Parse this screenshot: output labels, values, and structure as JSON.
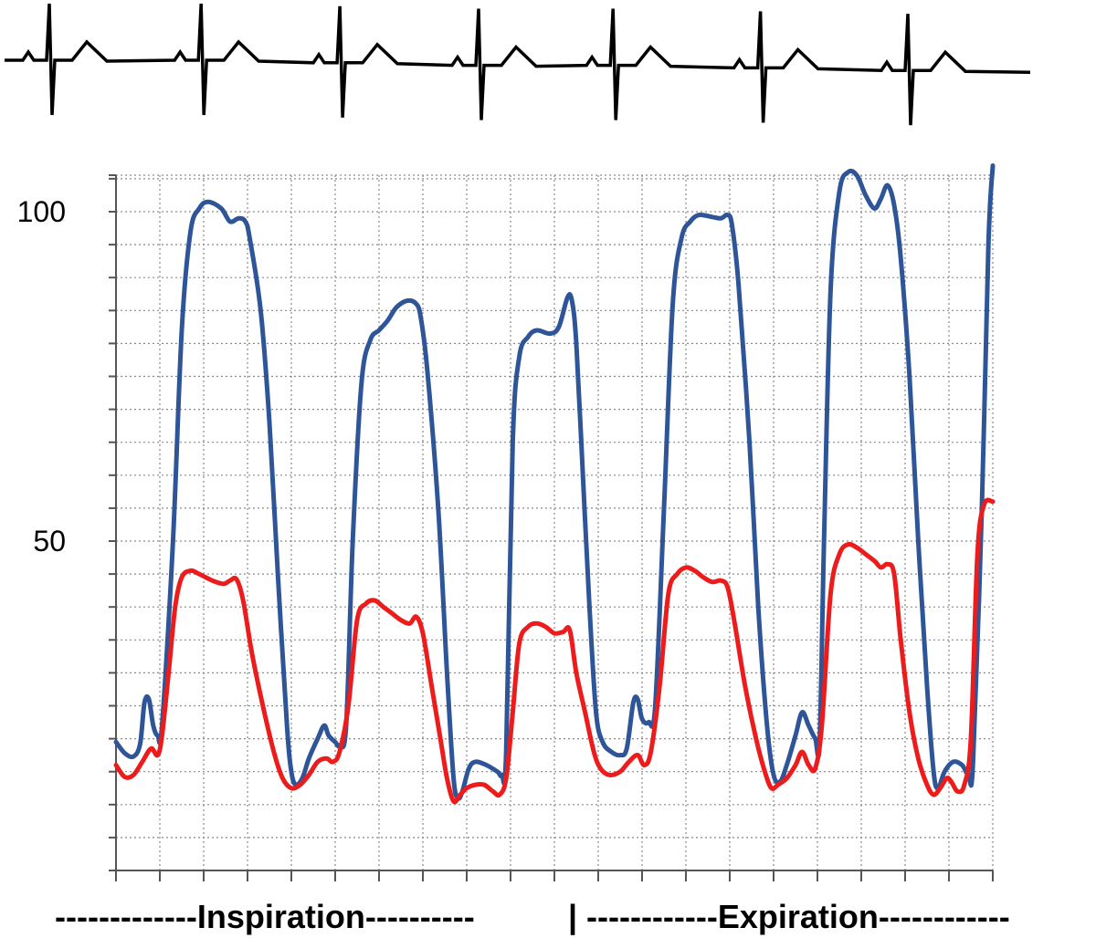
{
  "chart_data": {
    "type": "line",
    "title": "",
    "xlabel": "",
    "ylabel": "",
    "ylim": [
      0,
      110
    ],
    "y_ticks": [
      0,
      5,
      10,
      15,
      20,
      25,
      30,
      35,
      40,
      45,
      50,
      55,
      60,
      65,
      70,
      75,
      80,
      85,
      90,
      95,
      100,
      105
    ],
    "y_tick_labels": [
      {
        "value": 100,
        "label": "100"
      },
      {
        "value": 50,
        "label": "50"
      }
    ],
    "x_range": [
      0,
      20
    ],
    "grid": "dotted",
    "legend": "none",
    "ecg_trace": {
      "description_shown": "ECG trace above plot",
      "beats": [
        {
          "r_x": 0.0,
          "baseline": 0.0
        },
        {
          "r_x": 3.5,
          "baseline": 0.0
        },
        {
          "r_x": 6.7,
          "baseline": 0.2
        },
        {
          "r_x": 9.9,
          "baseline": 0.4
        },
        {
          "r_x": 13.0,
          "baseline": 0.4
        },
        {
          "r_x": 16.4,
          "baseline": 0.6
        },
        {
          "r_x": 19.8,
          "baseline": 0.8
        }
      ],
      "color": "#000000"
    },
    "series": [
      {
        "color": "#2e5597",
        "points": [
          [
            0.0,
            19.5
          ],
          [
            0.2,
            17.8
          ],
          [
            0.4,
            17.3
          ],
          [
            0.55,
            19.2
          ],
          [
            0.65,
            25.5
          ],
          [
            0.75,
            26.0
          ],
          [
            0.85,
            22.0
          ],
          [
            0.95,
            20.5
          ],
          [
            1.05,
            22.0
          ],
          [
            1.3,
            50.0
          ],
          [
            1.5,
            82.0
          ],
          [
            1.7,
            97.0
          ],
          [
            1.9,
            100.5
          ],
          [
            2.1,
            101.5
          ],
          [
            2.4,
            100.5
          ],
          [
            2.6,
            98.5
          ],
          [
            2.8,
            99.0
          ],
          [
            2.95,
            98.5
          ],
          [
            3.05,
            96.0
          ],
          [
            3.3,
            85.0
          ],
          [
            3.5,
            68.0
          ],
          [
            3.7,
            44.0
          ],
          [
            3.9,
            22.0
          ],
          [
            4.0,
            15.0
          ],
          [
            4.1,
            13.0
          ],
          [
            4.25,
            14.0
          ],
          [
            4.4,
            17.0
          ],
          [
            4.6,
            20.0
          ],
          [
            4.75,
            22.0
          ],
          [
            4.85,
            20.5
          ],
          [
            5.0,
            19.5
          ],
          [
            5.1,
            19.0
          ],
          [
            5.25,
            22.0
          ],
          [
            5.4,
            50.0
          ],
          [
            5.6,
            74.0
          ],
          [
            5.8,
            80.5
          ],
          [
            6.0,
            82.0
          ],
          [
            6.2,
            83.5
          ],
          [
            6.4,
            85.5
          ],
          [
            6.65,
            86.5
          ],
          [
            6.85,
            86.0
          ],
          [
            6.95,
            84.0
          ],
          [
            7.1,
            76.0
          ],
          [
            7.35,
            55.0
          ],
          [
            7.55,
            30.0
          ],
          [
            7.7,
            14.0
          ],
          [
            7.8,
            11.0
          ],
          [
            7.9,
            12.0
          ],
          [
            8.05,
            15.5
          ],
          [
            8.2,
            16.5
          ],
          [
            8.45,
            16.0
          ],
          [
            8.7,
            15.0
          ],
          [
            8.8,
            14.5
          ],
          [
            8.9,
            18.0
          ],
          [
            9.05,
            65.0
          ],
          [
            9.2,
            78.0
          ],
          [
            9.4,
            81.0
          ],
          [
            9.6,
            82.0
          ],
          [
            9.9,
            81.5
          ],
          [
            10.1,
            82.5
          ],
          [
            10.3,
            87.0
          ],
          [
            10.4,
            86.5
          ],
          [
            10.5,
            80.0
          ],
          [
            10.65,
            60.0
          ],
          [
            10.8,
            40.0
          ],
          [
            10.95,
            24.0
          ],
          [
            11.1,
            19.5
          ],
          [
            11.3,
            18.0
          ],
          [
            11.5,
            17.5
          ],
          [
            11.65,
            18.5
          ],
          [
            11.8,
            25.5
          ],
          [
            11.9,
            26.0
          ],
          [
            12.0,
            23.0
          ],
          [
            12.15,
            22.5
          ],
          [
            12.3,
            25.0
          ],
          [
            12.5,
            55.0
          ],
          [
            12.7,
            86.0
          ],
          [
            12.9,
            96.0
          ],
          [
            13.1,
            98.5
          ],
          [
            13.3,
            99.5
          ],
          [
            13.6,
            99.2
          ],
          [
            13.8,
            99.0
          ],
          [
            13.95,
            99.5
          ],
          [
            14.05,
            98.0
          ],
          [
            14.2,
            89.0
          ],
          [
            14.45,
            65.0
          ],
          [
            14.65,
            40.0
          ],
          [
            14.85,
            22.0
          ],
          [
            15.0,
            14.5
          ],
          [
            15.15,
            13.5
          ],
          [
            15.3,
            16.0
          ],
          [
            15.5,
            20.5
          ],
          [
            15.65,
            24.0
          ],
          [
            15.8,
            22.0
          ],
          [
            15.95,
            20.0
          ],
          [
            16.05,
            19.5
          ],
          [
            16.15,
            50.0
          ],
          [
            16.3,
            88.0
          ],
          [
            16.5,
            103.0
          ],
          [
            16.7,
            106.0
          ],
          [
            16.9,
            105.5
          ],
          [
            17.1,
            102.5
          ],
          [
            17.3,
            100.5
          ],
          [
            17.45,
            102.0
          ],
          [
            17.6,
            104.0
          ],
          [
            17.75,
            101.0
          ],
          [
            17.9,
            93.0
          ],
          [
            18.1,
            75.0
          ],
          [
            18.3,
            50.0
          ],
          [
            18.5,
            28.0
          ],
          [
            18.65,
            15.0
          ],
          [
            18.75,
            12.5
          ],
          [
            18.9,
            15.0
          ],
          [
            19.1,
            16.5
          ],
          [
            19.3,
            16.0
          ],
          [
            19.45,
            14.5
          ],
          [
            19.55,
            16.5
          ],
          [
            19.75,
            55.0
          ],
          [
            19.9,
            95.0
          ],
          [
            20.0,
            107.0
          ]
        ]
      },
      {
        "color": "#ed1c1c",
        "points": [
          [
            0.0,
            16.0
          ],
          [
            0.2,
            14.2
          ],
          [
            0.4,
            14.5
          ],
          [
            0.6,
            16.5
          ],
          [
            0.8,
            18.5
          ],
          [
            0.95,
            17.5
          ],
          [
            1.05,
            20.5
          ],
          [
            1.2,
            30.0
          ],
          [
            1.35,
            40.0
          ],
          [
            1.5,
            44.5
          ],
          [
            1.7,
            45.5
          ],
          [
            1.9,
            45.0
          ],
          [
            2.2,
            44.0
          ],
          [
            2.45,
            43.5
          ],
          [
            2.6,
            44.0
          ],
          [
            2.75,
            44.2
          ],
          [
            2.9,
            41.0
          ],
          [
            3.1,
            33.0
          ],
          [
            3.35,
            25.0
          ],
          [
            3.6,
            18.0
          ],
          [
            3.8,
            14.0
          ],
          [
            4.0,
            12.5
          ],
          [
            4.2,
            13.0
          ],
          [
            4.4,
            14.5
          ],
          [
            4.6,
            16.5
          ],
          [
            4.8,
            17.0
          ],
          [
            4.95,
            16.5
          ],
          [
            5.1,
            18.0
          ],
          [
            5.3,
            25.0
          ],
          [
            5.5,
            38.0
          ],
          [
            5.7,
            40.5
          ],
          [
            5.9,
            41.0
          ],
          [
            6.1,
            40.0
          ],
          [
            6.3,
            39.0
          ],
          [
            6.5,
            38.0
          ],
          [
            6.7,
            37.5
          ],
          [
            6.85,
            38.5
          ],
          [
            7.0,
            36.0
          ],
          [
            7.2,
            28.0
          ],
          [
            7.4,
            20.0
          ],
          [
            7.55,
            14.0
          ],
          [
            7.7,
            10.5
          ],
          [
            7.85,
            11.5
          ],
          [
            8.0,
            12.5
          ],
          [
            8.2,
            13.0
          ],
          [
            8.4,
            13.0
          ],
          [
            8.6,
            12.0
          ],
          [
            8.75,
            11.5
          ],
          [
            8.9,
            14.0
          ],
          [
            9.05,
            24.0
          ],
          [
            9.2,
            34.5
          ],
          [
            9.4,
            37.0
          ],
          [
            9.6,
            37.5
          ],
          [
            9.8,
            37.0
          ],
          [
            10.0,
            36.0
          ],
          [
            10.2,
            36.2
          ],
          [
            10.35,
            36.5
          ],
          [
            10.5,
            30.0
          ],
          [
            10.7,
            24.0
          ],
          [
            10.9,
            18.0
          ],
          [
            11.05,
            15.5
          ],
          [
            11.25,
            14.5
          ],
          [
            11.5,
            15.0
          ],
          [
            11.7,
            16.5
          ],
          [
            11.9,
            17.5
          ],
          [
            12.05,
            16.0
          ],
          [
            12.2,
            18.0
          ],
          [
            12.4,
            28.0
          ],
          [
            12.6,
            42.0
          ],
          [
            12.8,
            45.0
          ],
          [
            13.0,
            46.0
          ],
          [
            13.2,
            45.5
          ],
          [
            13.4,
            44.5
          ],
          [
            13.6,
            43.8
          ],
          [
            13.8,
            44.0
          ],
          [
            13.95,
            43.0
          ],
          [
            14.1,
            38.0
          ],
          [
            14.35,
            28.0
          ],
          [
            14.6,
            20.0
          ],
          [
            14.8,
            15.0
          ],
          [
            14.95,
            12.5
          ],
          [
            15.1,
            13.0
          ],
          [
            15.3,
            14.0
          ],
          [
            15.5,
            16.0
          ],
          [
            15.65,
            18.0
          ],
          [
            15.8,
            16.0
          ],
          [
            15.95,
            15.5
          ],
          [
            16.1,
            22.0
          ],
          [
            16.3,
            42.0
          ],
          [
            16.5,
            48.0
          ],
          [
            16.7,
            49.5
          ],
          [
            16.9,
            49.0
          ],
          [
            17.1,
            48.0
          ],
          [
            17.3,
            47.0
          ],
          [
            17.45,
            46.0
          ],
          [
            17.6,
            46.5
          ],
          [
            17.75,
            45.0
          ],
          [
            17.9,
            35.0
          ],
          [
            18.1,
            24.0
          ],
          [
            18.3,
            17.0
          ],
          [
            18.5,
            13.0
          ],
          [
            18.65,
            11.5
          ],
          [
            18.8,
            12.5
          ],
          [
            18.95,
            14.0
          ],
          [
            19.05,
            13.5
          ],
          [
            19.2,
            12.0
          ],
          [
            19.35,
            13.0
          ],
          [
            19.5,
            20.0
          ],
          [
            19.65,
            48.0
          ],
          [
            19.8,
            55.5
          ],
          [
            20.0,
            56.0
          ]
        ]
      }
    ],
    "phase_labels": [
      {
        "text": "-------------Inspiration----------"
      },
      {
        "text": "|"
      },
      {
        "text": "------------Expiration------------"
      }
    ]
  }
}
